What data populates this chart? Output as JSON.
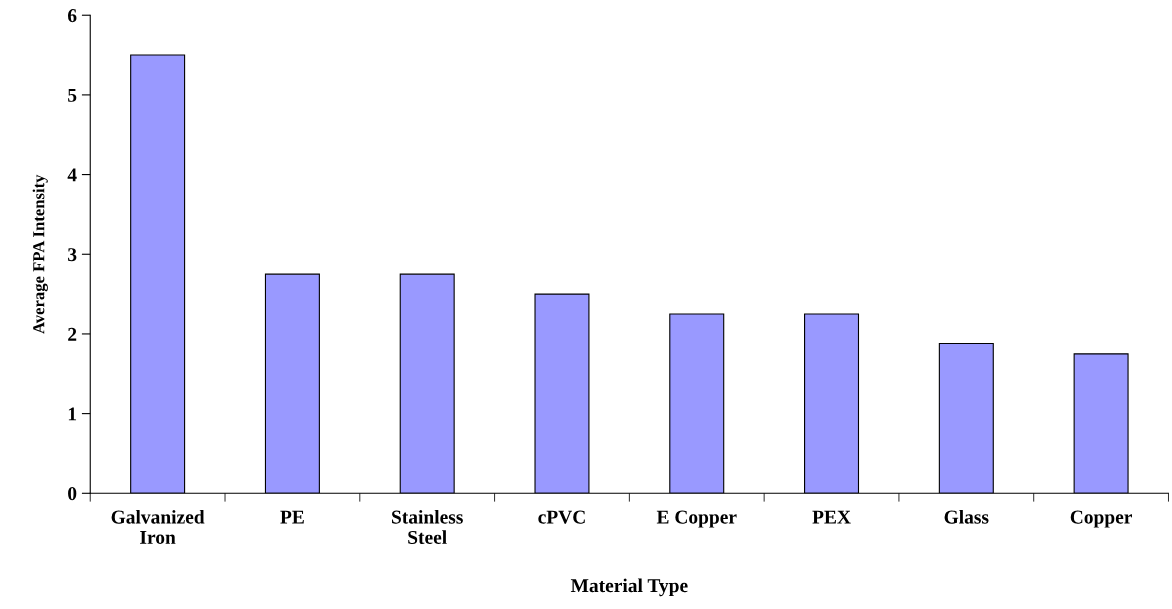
{
  "chart_data": {
    "type": "bar",
    "xlabel": "Material Type",
    "ylabel": "Average FPA Intensity",
    "categories": [
      "Galvanized\nIron",
      "PE",
      "Stainless\nSteel",
      "cPVC",
      "E Copper",
      "PEX",
      "Glass",
      "Copper"
    ],
    "values": [
      5.5,
      2.75,
      2.75,
      2.5,
      2.25,
      2.25,
      1.88,
      1.75
    ],
    "color": "#9999ff",
    "ylim": [
      0,
      6
    ],
    "yticks": [
      0,
      1,
      2,
      3,
      4,
      5,
      6
    ],
    "grid": false,
    "legend": false
  }
}
